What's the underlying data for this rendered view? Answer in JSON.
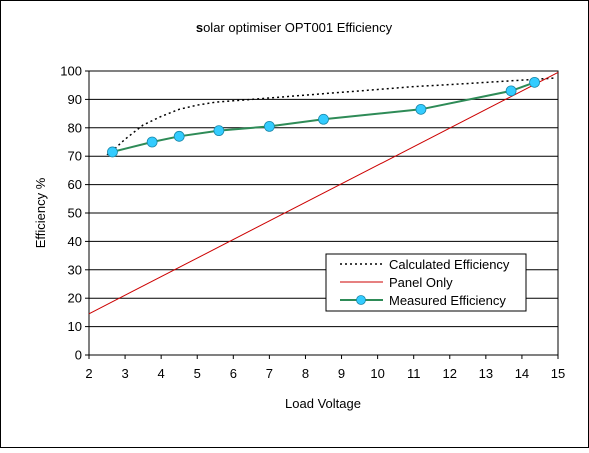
{
  "chart_data": {
    "type": "line",
    "title_prefix": "s",
    "title_rest": "olar optimiser OPT001 Efficiency",
    "xlabel": "Load Voltage",
    "ylabel": "Efficiency %",
    "xlim": [
      2,
      15
    ],
    "ylim": [
      0,
      100
    ],
    "x_ticks": [
      "2",
      "3",
      "4",
      "5",
      "6",
      "7",
      "8",
      "9",
      "10",
      "11",
      "12",
      "13",
      "14",
      "15"
    ],
    "y_ticks": [
      "0",
      "10",
      "20",
      "30",
      "40",
      "50",
      "60",
      "70",
      "80",
      "90",
      "100"
    ],
    "grid": "horizontal",
    "legend_position": "lower-right",
    "series": [
      {
        "name": "Calculated Efficiency",
        "style": "dotted",
        "color": "#000000",
        "x": [
          2.5,
          2.7,
          3.0,
          3.5,
          4.0,
          4.5,
          5.0,
          5.5,
          6.0,
          7.0,
          8.0,
          9.0,
          10.0,
          11.0,
          12.0,
          13.0,
          14.0,
          14.9
        ],
        "y": [
          70.5,
          72.5,
          76,
          81,
          84,
          86.5,
          88,
          89,
          89.5,
          90.5,
          91.5,
          92.5,
          93.5,
          94.5,
          95.2,
          96,
          96.8,
          97.5
        ]
      },
      {
        "name": "Panel Only",
        "style": "solid",
        "color": "#cc0000",
        "x": [
          2.0,
          15.0
        ],
        "y": [
          14.5,
          99.5
        ]
      },
      {
        "name": "Measured Efficiency",
        "style": "line-markers",
        "color": "#2e8b57",
        "marker_color": "#33ccff",
        "x": [
          2.65,
          3.75,
          4.5,
          5.6,
          7.0,
          8.5,
          11.2,
          13.7,
          14.35
        ],
        "y": [
          71.5,
          75,
          77,
          79,
          80.5,
          83,
          86.5,
          93,
          96
        ]
      }
    ]
  }
}
